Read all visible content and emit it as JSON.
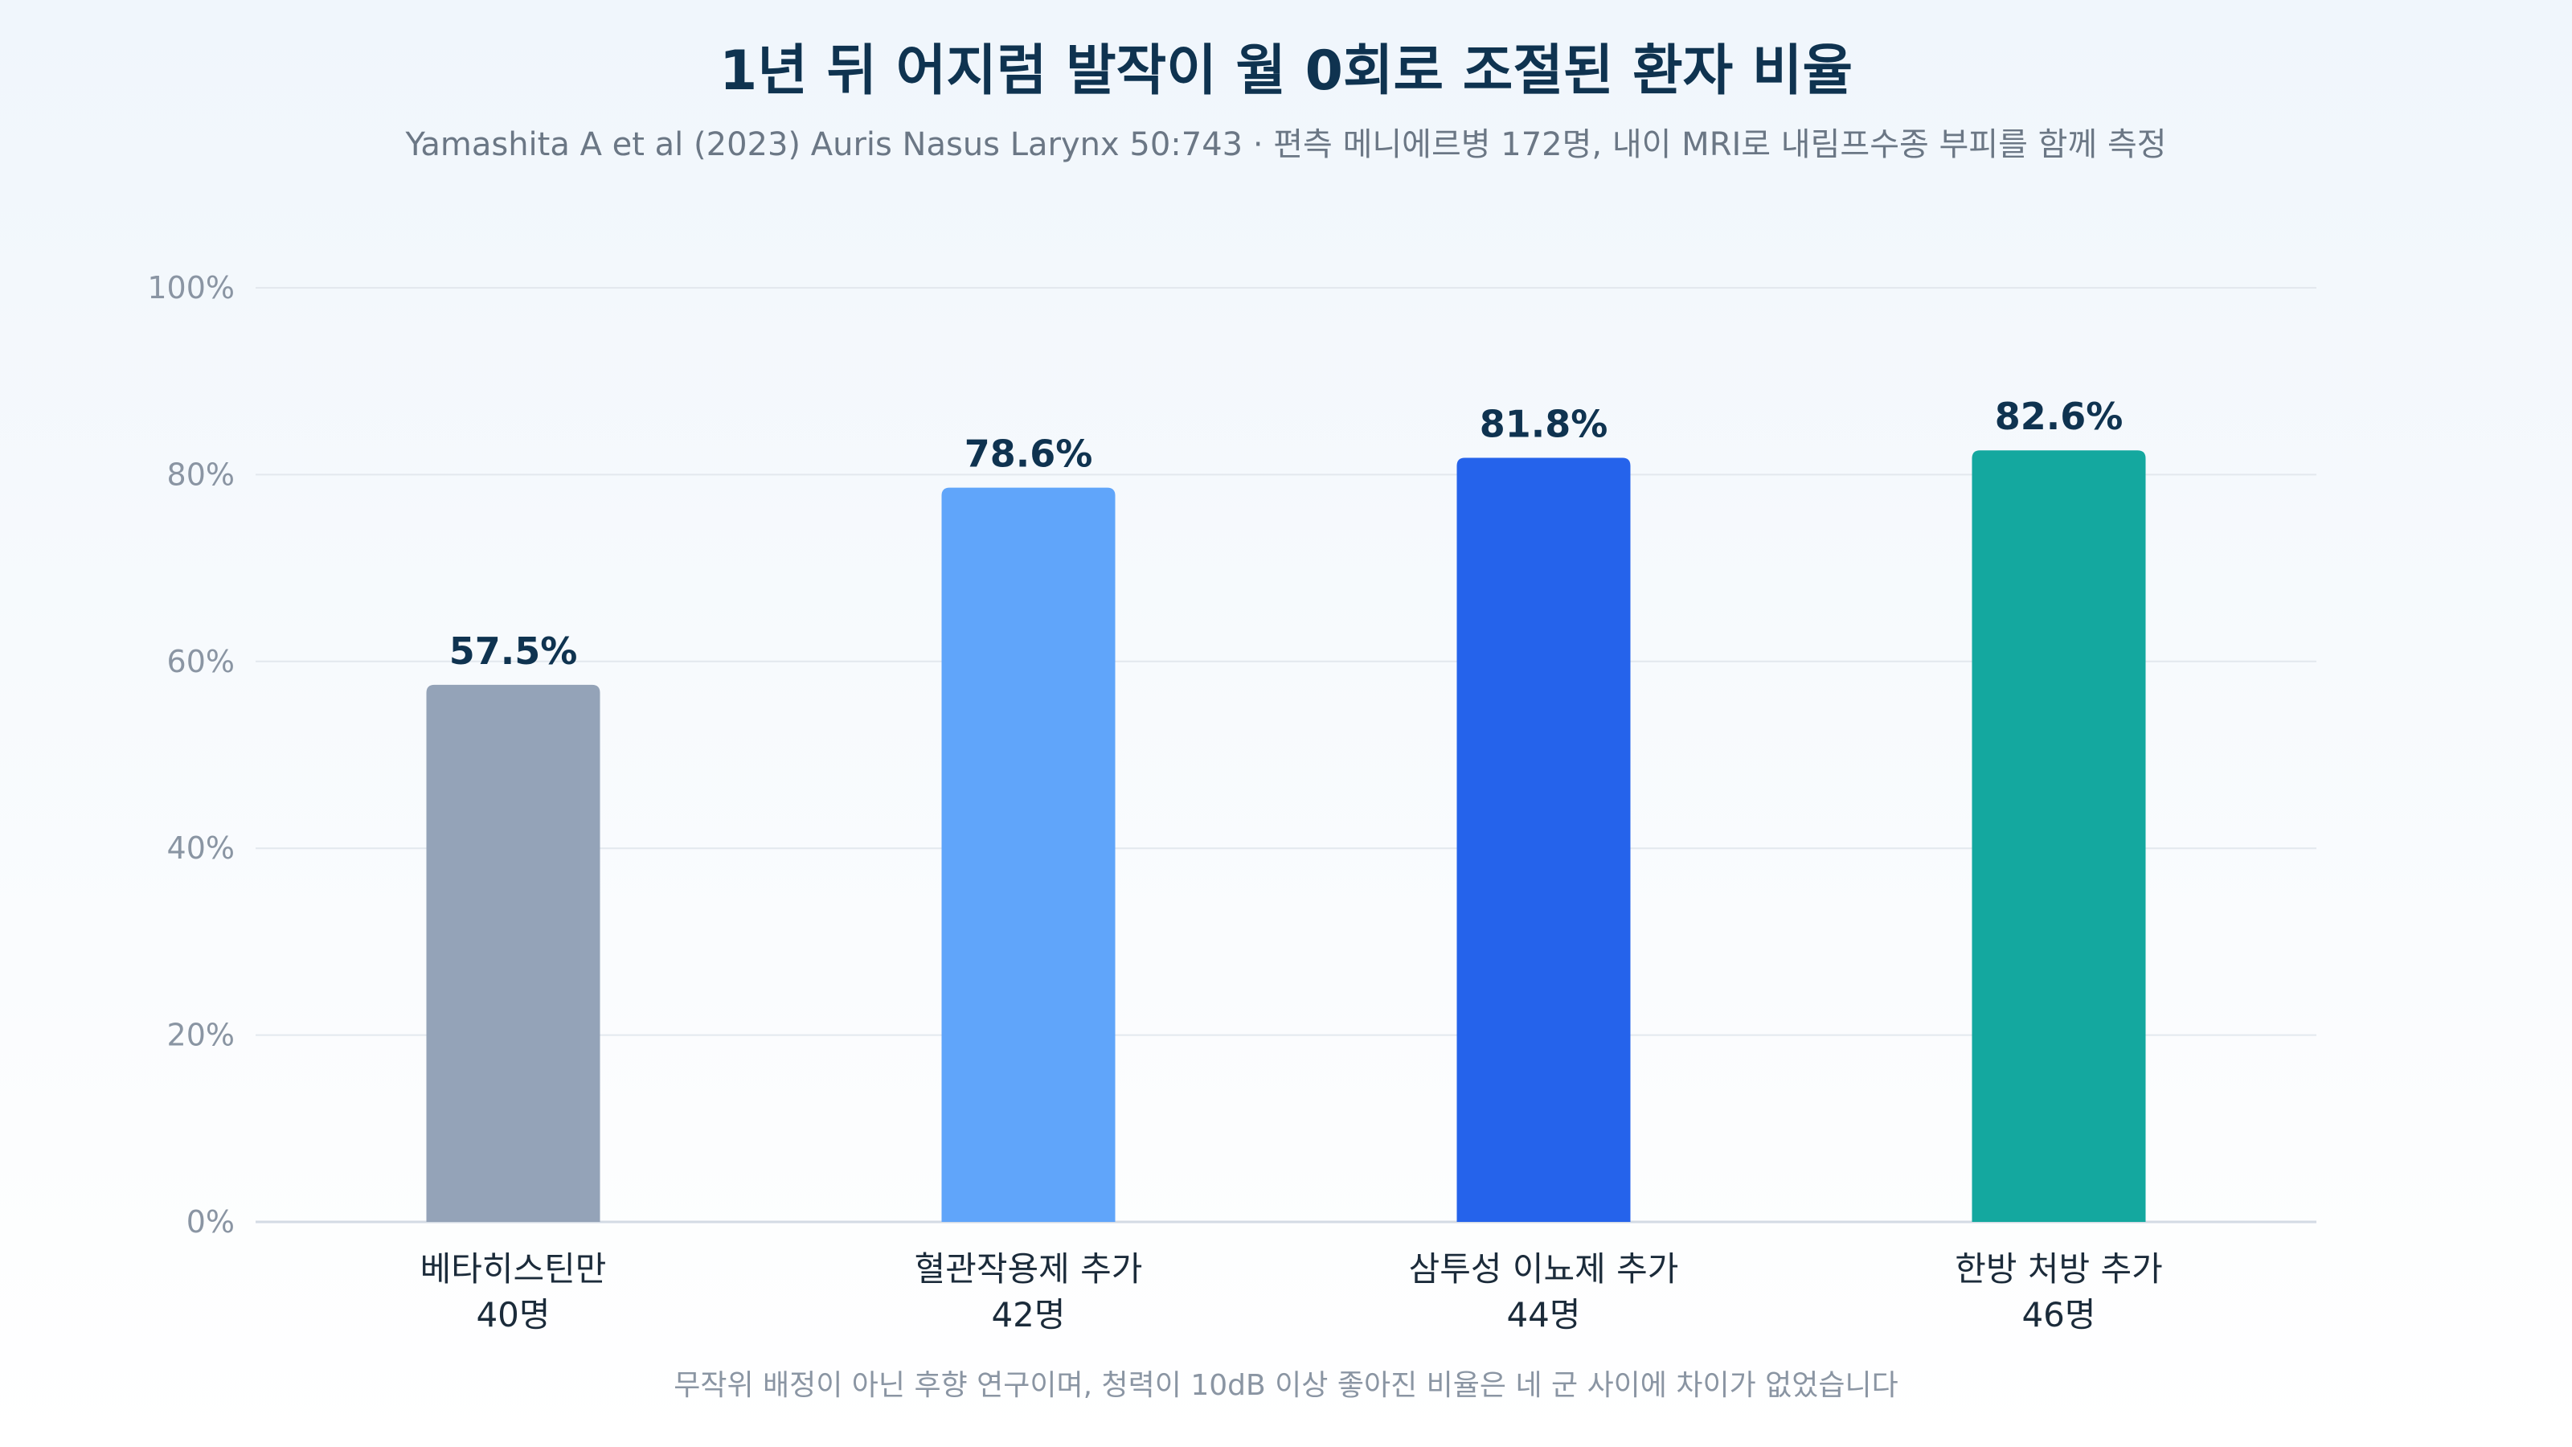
{
  "chart_data": {
    "type": "bar",
    "title": "1년 뒤 어지럼 발작이 월 0회로 조절된 환자 비율",
    "subtitle": "Yamashita A et al (2023) Auris Nasus Larynx 50:743 · 편측 메니에르병 172명, 내이 MRI로 내림프수종 부피를 함께 측정",
    "categories": [
      "베타히스틴만",
      "혈관작용제 추가",
      "삼투성 이뇨제 추가",
      "한방 처방 추가"
    ],
    "category_n": [
      "40명",
      "42명",
      "44명",
      "46명"
    ],
    "values": [
      57.5,
      78.6,
      81.8,
      82.6
    ],
    "value_labels": [
      "57.5%",
      "78.6%",
      "81.8%",
      "82.6%"
    ],
    "colors": [
      "#94a3b8",
      "#60a5fa",
      "#2563eb",
      "#14a89f"
    ],
    "ylim": [
      0,
      100
    ],
    "yticks": [
      0,
      20,
      40,
      60,
      80,
      100
    ],
    "ytick_labels": [
      "0%",
      "20%",
      "40%",
      "60%",
      "80%",
      "100%"
    ],
    "grid": true,
    "footnote": "무작위 배정이 아닌 후향 연구이며, 청력이 10dB 이상 좋아진 비율은 네 군 사이에 차이가 없었습니다"
  }
}
